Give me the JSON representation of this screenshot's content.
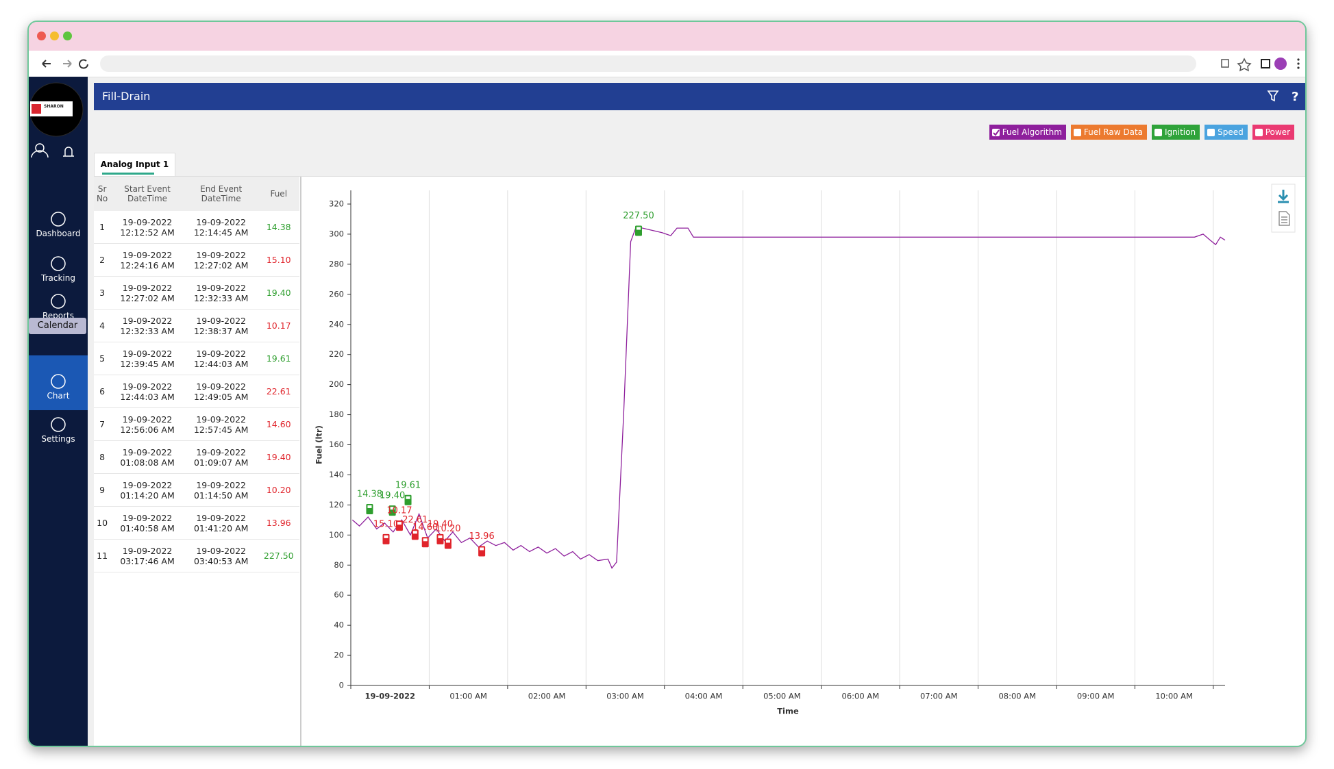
{
  "sidebar": {
    "logo": "SHARON",
    "tooltip": "Calendar",
    "nav": [
      {
        "label": "Dashboard",
        "active": false
      },
      {
        "label": "Tracking",
        "active": false
      },
      {
        "label": "Reports",
        "active": false
      },
      {
        "label": "Chart",
        "active": true
      },
      {
        "label": "Settings",
        "active": false
      }
    ]
  },
  "header": {
    "title": "Fill-Drain"
  },
  "tab": "Analog Input 1",
  "table": {
    "columns": [
      [
        "Sr",
        "No"
      ],
      [
        "Start Event",
        "DateTime"
      ],
      [
        "End Event",
        "DateTime"
      ],
      [
        "Fuel"
      ]
    ],
    "rows": [
      {
        "sr": "1",
        "start": [
          "19-09-2022",
          "12:12:52 AM"
        ],
        "end": [
          "19-09-2022",
          "12:14:45 AM"
        ],
        "fuel": "14.38",
        "color": "#2e9e2e"
      },
      {
        "sr": "2",
        "start": [
          "19-09-2022",
          "12:24:16 AM"
        ],
        "end": [
          "19-09-2022",
          "12:27:02 AM"
        ],
        "fuel": "15.10",
        "color": "#e0242b"
      },
      {
        "sr": "3",
        "start": [
          "19-09-2022",
          "12:27:02 AM"
        ],
        "end": [
          "19-09-2022",
          "12:32:33 AM"
        ],
        "fuel": "19.40",
        "color": "#2e9e2e"
      },
      {
        "sr": "4",
        "start": [
          "19-09-2022",
          "12:32:33 AM"
        ],
        "end": [
          "19-09-2022",
          "12:38:37 AM"
        ],
        "fuel": "10.17",
        "color": "#e0242b"
      },
      {
        "sr": "5",
        "start": [
          "19-09-2022",
          "12:39:45 AM"
        ],
        "end": [
          "19-09-2022",
          "12:44:03 AM"
        ],
        "fuel": "19.61",
        "color": "#2e9e2e"
      },
      {
        "sr": "6",
        "start": [
          "19-09-2022",
          "12:44:03 AM"
        ],
        "end": [
          "19-09-2022",
          "12:49:05 AM"
        ],
        "fuel": "22.61",
        "color": "#e0242b"
      },
      {
        "sr": "7",
        "start": [
          "19-09-2022",
          "12:56:06 AM"
        ],
        "end": [
          "19-09-2022",
          "12:57:45 AM"
        ],
        "fuel": "14.60",
        "color": "#e0242b"
      },
      {
        "sr": "8",
        "start": [
          "19-09-2022",
          "01:08:08 AM"
        ],
        "end": [
          "19-09-2022",
          "01:09:07 AM"
        ],
        "fuel": "19.40",
        "color": "#e0242b"
      },
      {
        "sr": "9",
        "start": [
          "19-09-2022",
          "01:14:20 AM"
        ],
        "end": [
          "19-09-2022",
          "01:14:50 AM"
        ],
        "fuel": "10.20",
        "color": "#e0242b"
      },
      {
        "sr": "10",
        "start": [
          "19-09-2022",
          "01:40:58 AM"
        ],
        "end": [
          "19-09-2022",
          "01:41:20 AM"
        ],
        "fuel": "13.96",
        "color": "#e0242b"
      },
      {
        "sr": "11",
        "start": [
          "19-09-2022",
          "03:17:46 AM"
        ],
        "end": [
          "19-09-2022",
          "03:40:53 AM"
        ],
        "fuel": "227.50",
        "color": "#2e9e2e"
      }
    ]
  },
  "chart_data": {
    "type": "line",
    "x_label": "Time",
    "y_label": "Fuel (ltr)",
    "grid": "x",
    "x": [
      0.02,
      0.11,
      0.22,
      0.33,
      0.43,
      0.54,
      0.65,
      0.76,
      0.87,
      0.98,
      1.09,
      1.2,
      1.3,
      1.41,
      1.52,
      1.63,
      1.74,
      1.85,
      1.96,
      2.07,
      2.17,
      2.28,
      2.39,
      2.5,
      2.61,
      2.72,
      2.83,
      2.93,
      3.04,
      3.15,
      3.28,
      3.33,
      3.39,
      3.48,
      3.57,
      3.64,
      3.8,
      3.97,
      4.08,
      4.16,
      4.3,
      4.37,
      5.33,
      7.5,
      10.76,
      10.87,
      10.96,
      11.03,
      11.09,
      11.15
    ],
    "series": [
      {
        "name": "Fuel Algorithm",
        "color": "#8e1f9c",
        "checked": true,
        "values": [
          110,
          106,
          112,
          104,
          108,
          102,
          110,
          100,
          114,
          98,
          104,
          96,
          102,
          95,
          98,
          92,
          96,
          93,
          95,
          90,
          93,
          89,
          92,
          88,
          91,
          86,
          89,
          84,
          87,
          83,
          84,
          78,
          82,
          180,
          295,
          305,
          303,
          301,
          299,
          304,
          304,
          298,
          298,
          298,
          298,
          300,
          296,
          293,
          298,
          296
        ]
      }
    ],
    "toggles": [
      {
        "name": "Fuel Raw Data",
        "color": "#ec7a2f",
        "checked": false
      },
      {
        "name": "Ignition",
        "color": "#2fa33a",
        "checked": false
      },
      {
        "name": "Speed",
        "color": "#4aa3df",
        "checked": false
      },
      {
        "name": "Power",
        "color": "#ea3a72",
        "checked": false
      }
    ],
    "events": [
      {
        "label": "14.38",
        "x": 0.24,
        "y": 117,
        "color": "#2e9e2e"
      },
      {
        "label": "19.40",
        "x": 0.53,
        "y": 116,
        "color": "#2e9e2e"
      },
      {
        "label": "19.61",
        "x": 0.73,
        "y": 123,
        "color": "#2e9e2e"
      },
      {
        "label": "227.50",
        "x": 3.67,
        "y": 302,
        "color": "#2e9e2e"
      },
      {
        "label": "15.10",
        "x": 0.45,
        "y": 97,
        "color": "#e0242b"
      },
      {
        "label": "10.17",
        "x": 0.62,
        "y": 106,
        "color": "#e0242b"
      },
      {
        "label": "22.61",
        "x": 0.82,
        "y": 100,
        "color": "#e0242b"
      },
      {
        "label": "14.60",
        "x": 0.95,
        "y": 95,
        "color": "#e0242b"
      },
      {
        "label": "19.40",
        "x": 1.14,
        "y": 97,
        "color": "#e0242b"
      },
      {
        "label": "10.20",
        "x": 1.24,
        "y": 94,
        "color": "#e0242b"
      },
      {
        "label": "13.96",
        "x": 1.67,
        "y": 89,
        "color": "#e0242b"
      }
    ],
    "xlim": [
      0,
      11.15
    ],
    "ylim": [
      0,
      320
    ],
    "xticks": [
      {
        "value": 0,
        "label": "19-09-2022"
      },
      {
        "value": 1,
        "label": "01:00 AM"
      },
      {
        "value": 2,
        "label": "02:00 AM"
      },
      {
        "value": 3,
        "label": "03:00 AM"
      },
      {
        "value": 4,
        "label": "04:00 AM"
      },
      {
        "value": 5,
        "label": "05:00 AM"
      },
      {
        "value": 6,
        "label": "06:00 AM"
      },
      {
        "value": 7,
        "label": "07:00 AM"
      },
      {
        "value": 8,
        "label": "08:00 AM"
      },
      {
        "value": 9,
        "label": "09:00 AM"
      },
      {
        "value": 10,
        "label": "10:00 AM"
      },
      {
        "value": 11,
        "label": null
      }
    ],
    "yticks": [
      0,
      20,
      40,
      60,
      80,
      100,
      120,
      140,
      160,
      180,
      200,
      220,
      240,
      260,
      280,
      300,
      320
    ]
  }
}
